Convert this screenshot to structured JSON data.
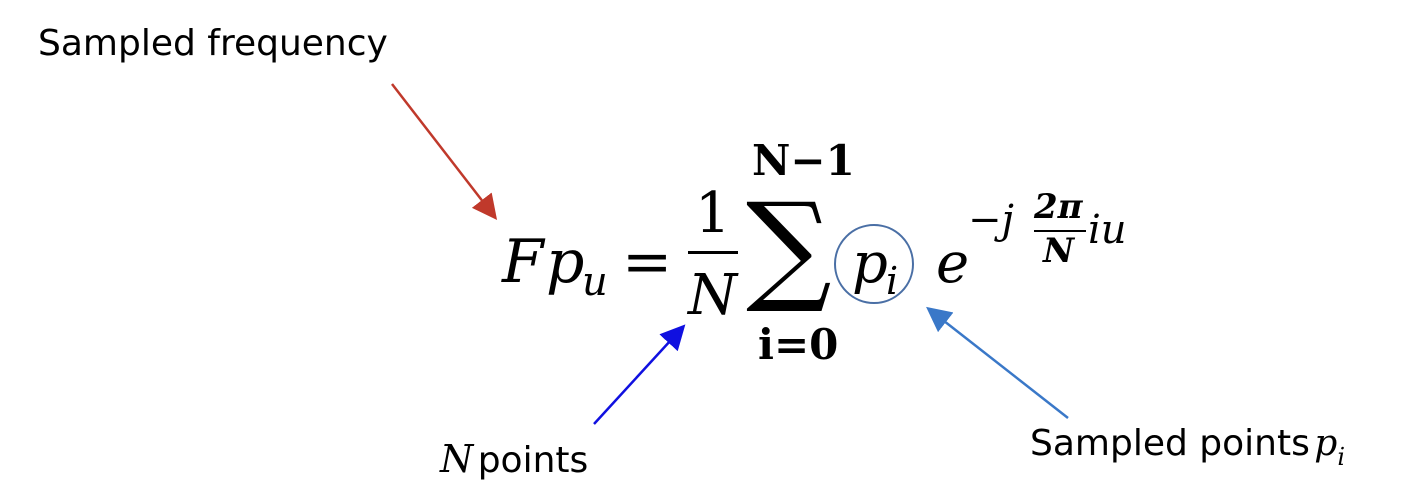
{
  "annotations": {
    "sampled_frequency": "Sampled frequency",
    "n_points_var": "N",
    "n_points_text": "points",
    "sampled_points_text": "Sampled points",
    "sampled_points_var": "p",
    "sampled_points_sub": "i"
  },
  "equation": {
    "lhs_F": "F",
    "lhs_p": "p",
    "lhs_sub": "u",
    "equals": "=",
    "frac_num": "1",
    "frac_den": "N",
    "sum_symbol": "∑",
    "sum_upper": "N−1",
    "sum_lower": "i=0",
    "term_p": "p",
    "term_sub": "i",
    "exp_base": "e",
    "exp_sign": "−j",
    "exp_frac_num": "2π",
    "exp_frac_den": "N",
    "exp_tail": "iu"
  },
  "colors": {
    "arrow_frequency": "#c0392b",
    "arrow_n_points": "#1010e0",
    "arrow_sampled_points": "#3a78c8",
    "circle": "#4a6fa5"
  }
}
